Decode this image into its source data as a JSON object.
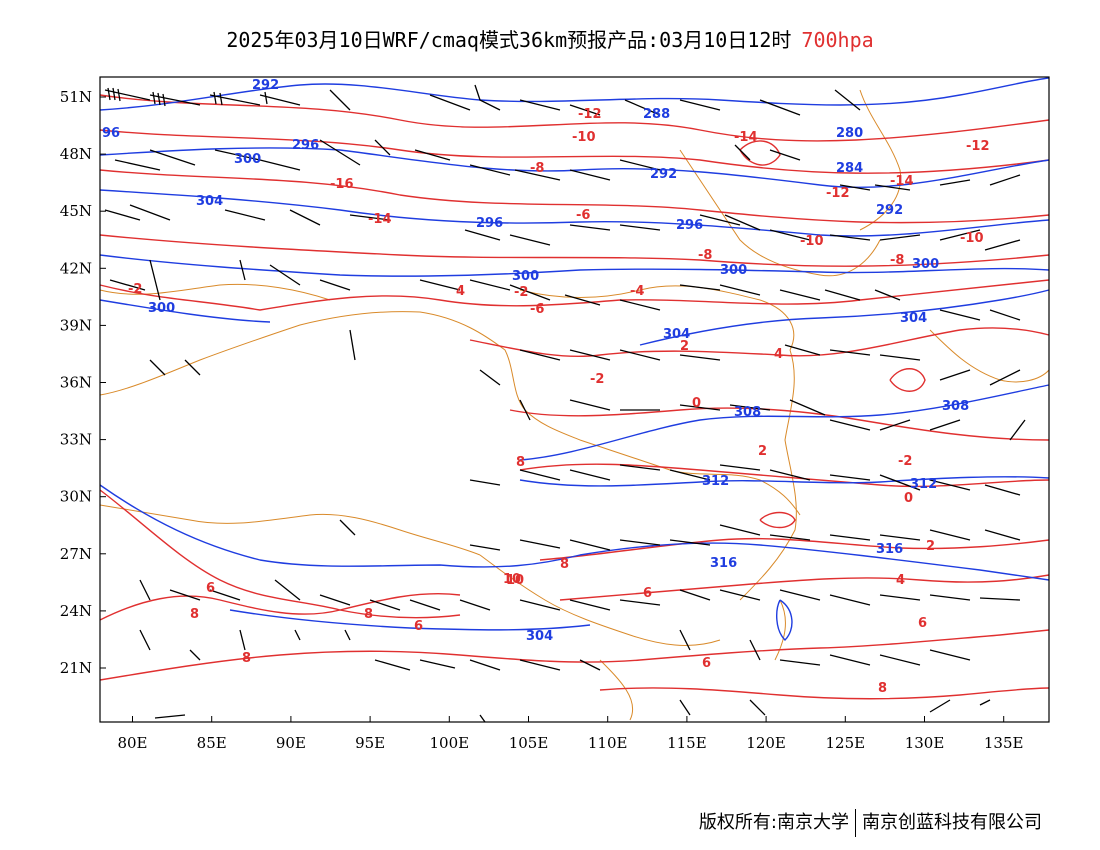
{
  "header": {
    "title": "2025年03月10日WRF/cmaq模式36km预报产品:03月10日12时",
    "level": "700hpa"
  },
  "footer": {
    "copyright": "版权所有:南京大学",
    "company": "南京创蓝科技有限公司"
  },
  "axes": {
    "lon_labels": [
      "80E",
      "85E",
      "90E",
      "95E",
      "100E",
      "105E",
      "110E",
      "115E",
      "120E",
      "125E",
      "130E",
      "135E"
    ],
    "lat_labels": [
      "51N",
      "48N",
      "45N",
      "42N",
      "39N",
      "36N",
      "33N",
      "30N",
      "27N",
      "24N",
      "21N"
    ]
  },
  "colors": {
    "geopotential": "#1f3de0",
    "temperature": "#e03030",
    "boundary": "#d98a2a",
    "barb": "#000000"
  },
  "geopotential_labels": [
    "292",
    "296",
    "300",
    "304",
    "300",
    "296",
    "292",
    "288",
    "284",
    "280",
    "300",
    "304",
    "308",
    "312",
    "316",
    "300",
    "304",
    "308",
    "312",
    "316",
    "296",
    "292",
    "300",
    "304",
    "96"
  ],
  "temperature_labels": [
    "-12",
    "-10",
    "-8",
    "-6",
    "-14",
    "-16",
    "-12",
    "-14",
    "-10",
    "-8",
    "-6",
    "-4",
    "-2",
    "0",
    "2",
    "4",
    "6",
    "8",
    "10",
    "-2",
    "2",
    "4",
    "6",
    "8",
    "-10",
    "-12",
    "-8",
    "-14",
    "0",
    "2",
    "-2",
    "4",
    "6",
    "8",
    "10",
    "8",
    "6",
    "8",
    "6",
    "8",
    "-2"
  ]
}
